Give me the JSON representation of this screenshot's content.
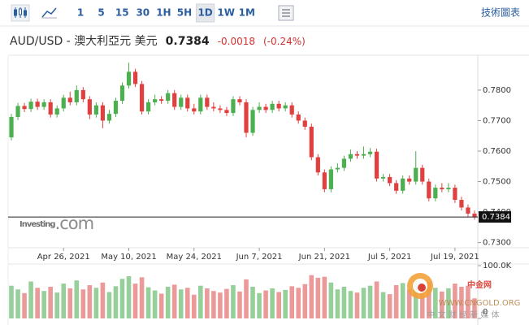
{
  "toolbar": {
    "timeframes": [
      "1",
      "5",
      "15",
      "30",
      "1H",
      "5H",
      "1D",
      "1W",
      "1M"
    ],
    "active": 6,
    "chart_tools": "技術圖表"
  },
  "header": {
    "symbol": "AUD/USD - 澳大利亞元 美元",
    "price": "0.7384",
    "change": "-0.0018",
    "change_pct": "(-0.24%)"
  },
  "chart_data": {
    "type": "candlestick",
    "categories": [
      null,
      null,
      null,
      null,
      null,
      null,
      null,
      null,
      "Apr 26, 2021",
      null,
      null,
      null,
      null,
      null,
      null,
      null,
      null,
      null,
      "May 10, 2021",
      null,
      null,
      null,
      null,
      null,
      null,
      null,
      null,
      null,
      "May 24, 2021",
      null,
      null,
      null,
      null,
      null,
      null,
      null,
      null,
      null,
      "Jun 7, 2021",
      null,
      null,
      null,
      null,
      null,
      null,
      null,
      null,
      null,
      "Jun 21, 2021",
      null,
      null,
      null,
      null,
      null,
      null,
      null,
      null,
      null,
      "Jul 5, 2021",
      null,
      null,
      null,
      null,
      null,
      null,
      null,
      null,
      null,
      "Jul 19, 2021",
      null,
      null,
      null
    ],
    "open": [
      0.7645,
      0.7712,
      0.7748,
      0.7738,
      0.7762,
      0.7745,
      0.776,
      0.772,
      0.774,
      0.7775,
      0.776,
      0.78,
      0.777,
      0.772,
      0.775,
      0.77,
      0.7722,
      0.7765,
      0.7815,
      0.786,
      0.782,
      0.773,
      0.776,
      0.777,
      0.7765,
      0.779,
      0.7745,
      0.7775,
      0.774,
      0.773,
      0.7775,
      0.7745,
      0.774,
      0.7735,
      0.7725,
      0.777,
      0.776,
      0.766,
      0.7735,
      0.7745,
      0.7735,
      0.7755,
      0.774,
      0.775,
      0.772,
      0.77,
      0.768,
      0.758,
      0.753,
      0.7475,
      0.754,
      0.7545,
      0.7575,
      0.759,
      0.7585,
      0.759,
      0.7598,
      0.751,
      0.7515,
      0.7495,
      0.747,
      0.751,
      0.75,
      0.7545,
      0.75,
      0.7445,
      0.748,
      0.7475,
      0.748,
      0.744,
      0.7415,
      0.7395
    ],
    "high": [
      0.7722,
      0.7758,
      0.7758,
      0.7772,
      0.7772,
      0.777,
      0.777,
      0.775,
      0.7785,
      0.7795,
      0.7815,
      0.781,
      0.778,
      0.776,
      0.776,
      0.7735,
      0.7775,
      0.7825,
      0.789,
      0.787,
      0.783,
      0.777,
      0.7785,
      0.778,
      0.78,
      0.78,
      0.7785,
      0.7785,
      0.7755,
      0.7785,
      0.7785,
      0.776,
      0.775,
      0.7745,
      0.778,
      0.778,
      0.777,
      0.7745,
      0.776,
      0.7755,
      0.7765,
      0.7765,
      0.776,
      0.776,
      0.773,
      0.771,
      0.769,
      0.759,
      0.754,
      0.755,
      0.756,
      0.7585,
      0.7605,
      0.76,
      0.7615,
      0.761,
      0.7608,
      0.7525,
      0.7525,
      0.7505,
      0.752,
      0.752,
      0.76,
      0.7555,
      0.751,
      0.749,
      0.7495,
      0.7495,
      0.749,
      0.745,
      0.7425,
      0.7405
    ],
    "low": [
      0.7635,
      0.7702,
      0.7728,
      0.7728,
      0.7735,
      0.7735,
      0.771,
      0.771,
      0.773,
      0.775,
      0.775,
      0.776,
      0.7705,
      0.771,
      0.7675,
      0.769,
      0.7712,
      0.7755,
      0.7805,
      0.781,
      0.772,
      0.772,
      0.775,
      0.7755,
      0.7755,
      0.7735,
      0.7735,
      0.773,
      0.772,
      0.772,
      0.7735,
      0.773,
      0.7725,
      0.7715,
      0.7715,
      0.775,
      0.7645,
      0.765,
      0.7725,
      0.7725,
      0.7725,
      0.773,
      0.773,
      0.771,
      0.769,
      0.767,
      0.757,
      0.752,
      0.7465,
      0.7465,
      0.753,
      0.7535,
      0.7565,
      0.7575,
      0.7575,
      0.758,
      0.75,
      0.75,
      0.7485,
      0.746,
      0.746,
      0.749,
      0.749,
      0.749,
      0.7435,
      0.7435,
      0.7465,
      0.7465,
      0.743,
      0.7405,
      0.7385,
      0.7375
    ],
    "close": [
      0.7712,
      0.7748,
      0.7738,
      0.7762,
      0.7745,
      0.776,
      0.772,
      0.774,
      0.7775,
      0.776,
      0.78,
      0.777,
      0.772,
      0.775,
      0.77,
      0.7722,
      0.7765,
      0.7815,
      0.786,
      0.782,
      0.773,
      0.776,
      0.777,
      0.7765,
      0.779,
      0.7745,
      0.7775,
      0.774,
      0.773,
      0.7775,
      0.7745,
      0.774,
      0.7735,
      0.7725,
      0.777,
      0.776,
      0.766,
      0.7735,
      0.7745,
      0.7735,
      0.7755,
      0.774,
      0.775,
      0.772,
      0.77,
      0.768,
      0.758,
      0.753,
      0.7475,
      0.754,
      0.7545,
      0.7575,
      0.759,
      0.7585,
      0.759,
      0.7598,
      0.751,
      0.7515,
      0.7495,
      0.747,
      0.751,
      0.75,
      0.7545,
      0.75,
      0.7445,
      0.748,
      0.7475,
      0.748,
      0.744,
      0.7415,
      0.7395,
      0.7384
    ],
    "volume": [
      62000,
      55000,
      48000,
      70000,
      58000,
      52000,
      60000,
      49000,
      66000,
      57000,
      72000,
      55000,
      63000,
      58000,
      68000,
      50000,
      61000,
      75000,
      80000,
      66000,
      78000,
      59000,
      53000,
      47000,
      60000,
      64000,
      55000,
      58000,
      45000,
      62000,
      57000,
      52000,
      49000,
      56000,
      63000,
      51000,
      74000,
      60000,
      48000,
      53000,
      57000,
      50000,
      54000,
      61000,
      58000,
      65000,
      82000,
      77000,
      79000,
      68000,
      55000,
      60000,
      52000,
      49000,
      58000,
      62000,
      70000,
      50000,
      46000,
      63000,
      67000,
      55000,
      72000,
      64000,
      69000,
      58000,
      51000,
      57000,
      66000,
      60000,
      62000,
      38000
    ],
    "up_color": "#4caf50",
    "down_color": "#e0403f",
    "volume_up_color": "#97cf9a",
    "volume_down_color": "#eb9a99",
    "ylim": [
      0.7283,
      0.7909
    ],
    "yticks": [
      {
        "value": 0.73,
        "label": "0.7300"
      },
      {
        "value": 0.74,
        "label": "0.7400"
      },
      {
        "value": 0.75,
        "label": "0.7500"
      },
      {
        "value": 0.76,
        "label": "0.7600"
      },
      {
        "value": 0.77,
        "label": "0.7700"
      },
      {
        "value": 0.78,
        "label": "0.7800"
      }
    ],
    "volume_lim": [
      0,
      100000
    ],
    "volume_ticks": [
      0,
      {
        "value": 100000,
        "label": "100.0K"
      }
    ],
    "price_line": 0.7384,
    "grid": false
  },
  "watermarks": {
    "logo_main": "Investing",
    "logo_suffix": ".com",
    "site": "中金网",
    "site_url": "WWW.CNGOLD.ORG",
    "site_tagline": "中 文 财 经 新 媒 体"
  }
}
